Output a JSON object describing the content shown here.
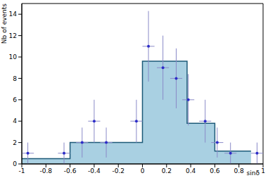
{
  "chart_data": {
    "type": "histogram",
    "x_label": "sinδ",
    "y_label": "Nb of events",
    "bins": [
      -1,
      -0.6,
      0,
      0.37,
      0.6,
      0.9
    ],
    "counts": [
      0.5,
      2,
      9.6,
      3.8,
      1.2
    ],
    "color": "#a9d0e2",
    "series": [
      {
        "type": "scatter",
        "color": "#2b2bc8",
        "marker": "circle",
        "x": [
          -0.95,
          -0.65,
          -0.5,
          -0.4,
          -0.3,
          -0.05,
          0.05,
          0.17,
          0.28,
          0.38,
          0.52,
          0.62,
          0.73,
          0.95
        ],
        "values": [
          1,
          1,
          2,
          4,
          2,
          4,
          11,
          9,
          8,
          6,
          4,
          2,
          1,
          1
        ],
        "x_error": [
          0.05,
          0.05,
          0.05,
          0.05,
          0.05,
          0.05,
          0.05,
          0.05,
          0.05,
          0.05,
          0.05,
          0.05,
          0.05,
          0.05
        ],
        "y_error": [
          1,
          1,
          1.4,
          2,
          1.4,
          2,
          3.3,
          3,
          2.8,
          2.4,
          2,
          1.4,
          1,
          1
        ]
      }
    ],
    "xlim": [
      -1,
      1
    ],
    "ylim": [
      0,
      15
    ],
    "xticks": [
      -1,
      -0.8,
      -0.6,
      -0.4,
      -0.2,
      0,
      0.2,
      0.4,
      0.6,
      0.8,
      1
    ],
    "yticks": [
      0,
      2,
      4,
      6,
      8,
      10,
      12,
      14
    ]
  }
}
